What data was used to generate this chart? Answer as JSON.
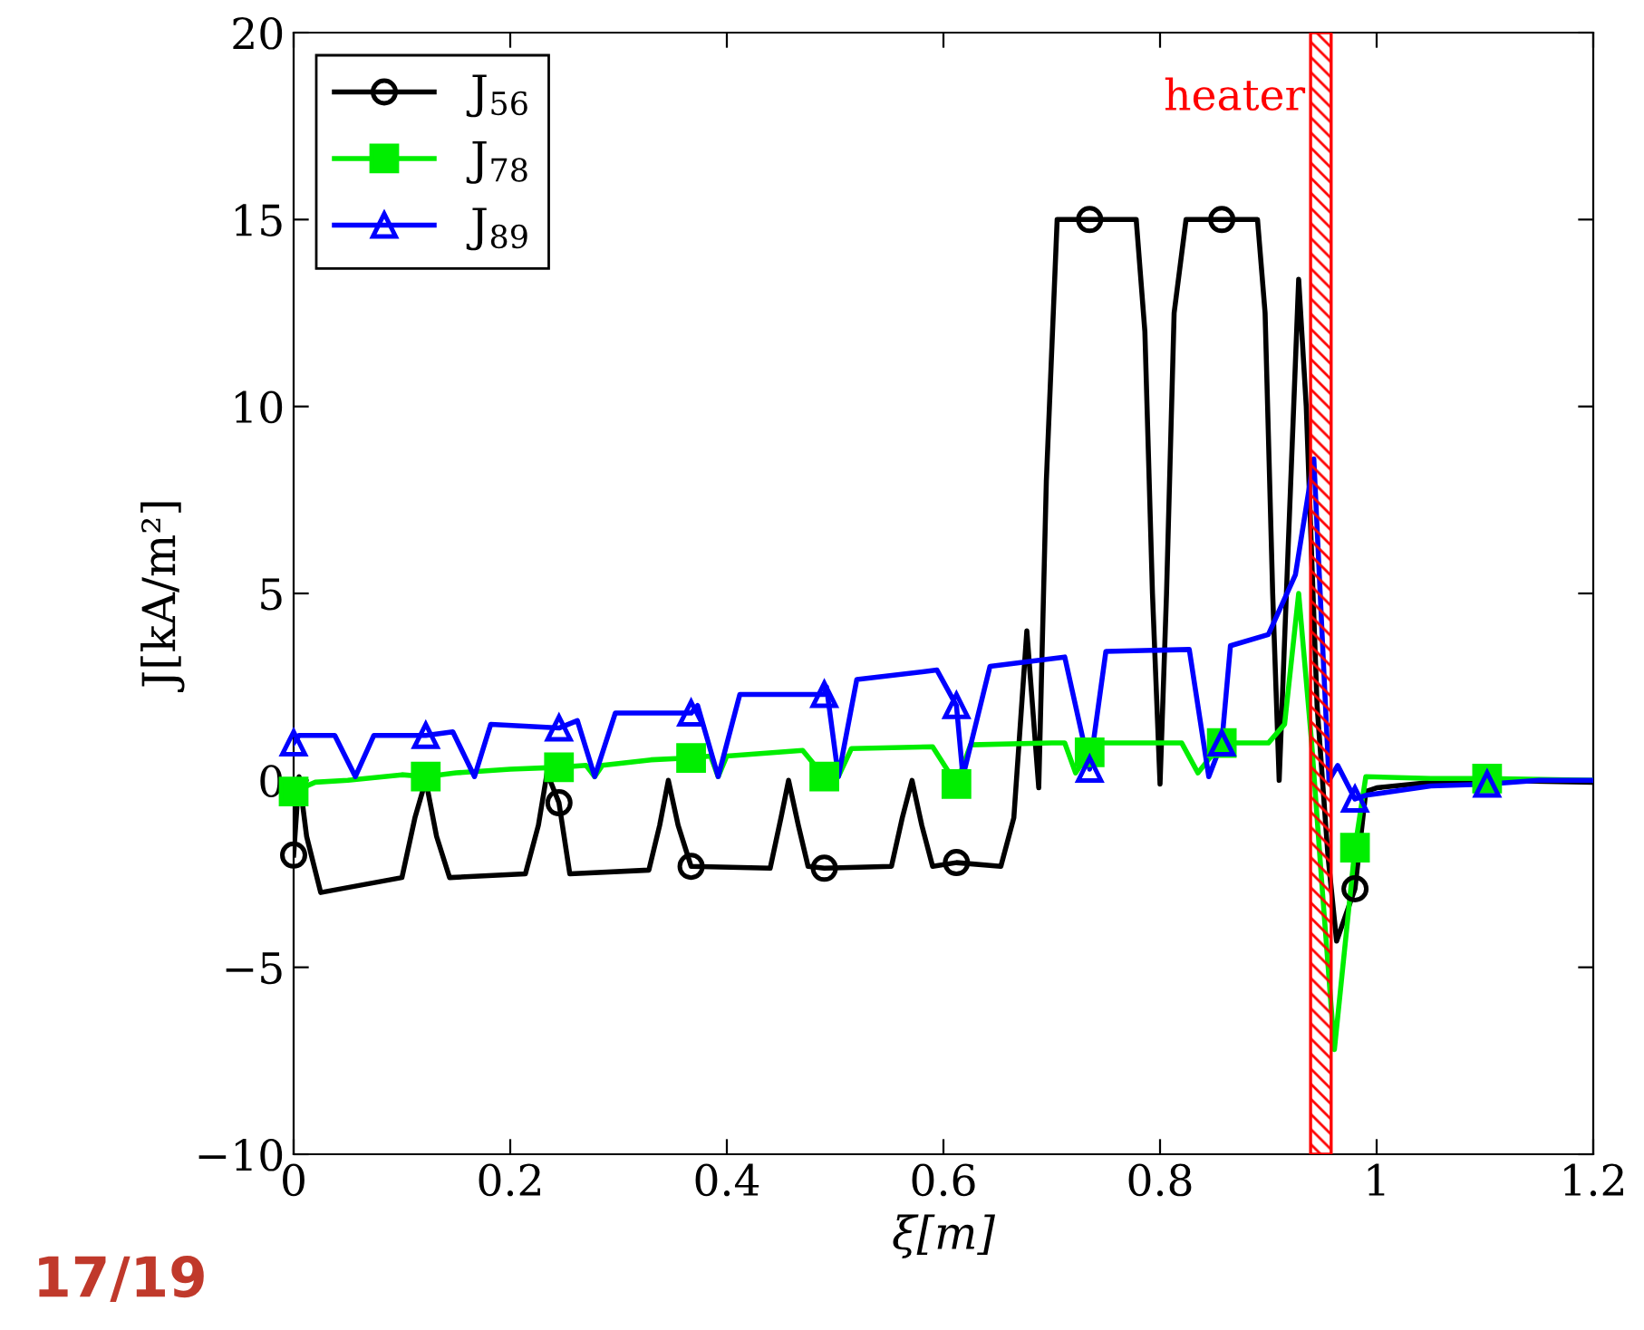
{
  "chart_data": {
    "type": "line",
    "xlabel": "ξ[m]",
    "ylabel": "J[kA/m²]",
    "xlim": [
      0,
      1.2
    ],
    "xticks": [
      0,
      0.2,
      0.4,
      0.6,
      0.8,
      1,
      1.2
    ],
    "ylim": [
      -10,
      20
    ],
    "yticks": [
      {
        "value": -10,
        "label": "−10"
      },
      {
        "value": -5,
        "label": "−5"
      },
      0,
      5,
      10,
      15,
      20
    ],
    "grid": false,
    "legend": "top left",
    "line_style": "solid",
    "series": [
      {
        "name": "J$_{56}$",
        "color": "#000000",
        "x": [
          0,
          0.005,
          0.012,
          0.025,
          0.1,
          0.112,
          0.122,
          0.132,
          0.144,
          0.214,
          0.226,
          0.234,
          0.245,
          0.255,
          0.328,
          0.338,
          0.346,
          0.355,
          0.367,
          0.44,
          0.45,
          0.457,
          0.466,
          0.475,
          0.49,
          0.552,
          0.562,
          0.571,
          0.58,
          0.59,
          0.612,
          0.653,
          0.665,
          0.677,
          0.688,
          0.695,
          0.705,
          0.735,
          0.778,
          0.786,
          0.793,
          0.8,
          0.806,
          0.813,
          0.824,
          0.857,
          0.89,
          0.897,
          0.904,
          0.91,
          0.918,
          0.928,
          0.935,
          0.945,
          0.955,
          0.963,
          0.98,
          0.99,
          1.0,
          1.05,
          1.1,
          1.2
        ],
        "values": [
          -2.0,
          0.1,
          -1.5,
          -3.0,
          -2.6,
          -1.0,
          0.0,
          -1.5,
          -2.6,
          -2.5,
          -1.2,
          0.2,
          -0.6,
          -2.5,
          -2.4,
          -1.2,
          0.0,
          -1.2,
          -2.3,
          -2.35,
          -1.0,
          0.0,
          -1.2,
          -2.3,
          -2.35,
          -2.3,
          -1.0,
          0.0,
          -1.2,
          -2.3,
          -2.2,
          -2.3,
          -1.0,
          4.0,
          -0.2,
          8.0,
          15.0,
          15.0,
          15.0,
          12.0,
          5.0,
          -0.1,
          5.0,
          12.5,
          15.0,
          15.0,
          15.0,
          12.5,
          5.0,
          0.0,
          6.0,
          13.4,
          10.0,
          2.0,
          -2.0,
          -4.3,
          -2.9,
          -0.3,
          -0.2,
          -0.05,
          0.0,
          -0.05
        ]
      },
      {
        "name": "J$_{78}$",
        "color": "#00ee00",
        "x": [
          0,
          0.02,
          0.05,
          0.1,
          0.122,
          0.15,
          0.2,
          0.245,
          0.27,
          0.278,
          0.285,
          0.33,
          0.367,
          0.385,
          0.392,
          0.4,
          0.47,
          0.49,
          0.503,
          0.515,
          0.59,
          0.612,
          0.625,
          0.7,
          0.712,
          0.722,
          0.735,
          0.745,
          0.82,
          0.835,
          0.857,
          0.9,
          0.915,
          0.928,
          0.94,
          0.95,
          0.961,
          0.98,
          0.99,
          1.05,
          1.102,
          1.2
        ],
        "values": [
          -0.3,
          -0.05,
          0.0,
          0.15,
          0.1,
          0.2,
          0.3,
          0.35,
          0.4,
          0.1,
          0.4,
          0.55,
          0.6,
          0.65,
          0.1,
          0.65,
          0.8,
          0.1,
          0.1,
          0.85,
          0.9,
          -0.1,
          0.95,
          1.0,
          1.0,
          0.2,
          0.75,
          1.0,
          1.0,
          0.2,
          1.0,
          1.0,
          1.5,
          5.0,
          1.0,
          -3.0,
          -7.2,
          -1.8,
          0.1,
          0.05,
          0.05,
          0.0
        ]
      },
      {
        "name": "J$_{89}$",
        "color": "#0000ff",
        "x": [
          0,
          0.005,
          0.038,
          0.057,
          0.074,
          0.122,
          0.147,
          0.167,
          0.182,
          0.245,
          0.262,
          0.278,
          0.297,
          0.367,
          0.373,
          0.392,
          0.412,
          0.49,
          0.492,
          0.503,
          0.52,
          0.594,
          0.612,
          0.618,
          0.643,
          0.712,
          0.735,
          0.75,
          0.827,
          0.845,
          0.857,
          0.865,
          0.9,
          0.925,
          0.942,
          0.956,
          0.964,
          0.98,
          0.99,
          1.05,
          1.102,
          1.15,
          1.2
        ],
        "values": [
          1.0,
          1.2,
          1.2,
          0.1,
          1.2,
          1.2,
          1.3,
          0.1,
          1.5,
          1.4,
          1.6,
          0.1,
          1.8,
          1.8,
          2.0,
          0.1,
          2.3,
          2.3,
          2.5,
          0.1,
          2.7,
          2.95,
          2.0,
          0.1,
          3.05,
          3.3,
          0.3,
          3.45,
          3.5,
          0.1,
          1.0,
          3.6,
          3.9,
          5.5,
          8.6,
          0.0,
          0.4,
          -0.5,
          -0.4,
          -0.15,
          -0.1,
          0.0,
          0.0
        ]
      },
      {
        "type": "scatter",
        "color": "#000000",
        "marker": "circle",
        "x": [
          0,
          0.245,
          0.367,
          0.49,
          0.612,
          0.735,
          0.857,
          0.98
        ],
        "values": [
          -2.0,
          -0.6,
          -2.3,
          -2.35,
          -2.2,
          15.0,
          15.0,
          -2.9
        ]
      },
      {
        "type": "scatter",
        "color": "#00ee00",
        "marker": "square",
        "x": [
          0,
          0.122,
          0.245,
          0.367,
          0.49,
          0.612,
          0.735,
          0.857,
          0.98,
          1.102
        ],
        "values": [
          -0.3,
          0.1,
          0.35,
          0.6,
          0.1,
          -0.1,
          0.75,
          1.0,
          -1.8,
          0.05
        ]
      },
      {
        "type": "scatter",
        "color": "#0000ff",
        "marker": "triangle",
        "x": [
          0,
          0.122,
          0.245,
          0.367,
          0.49,
          0.612,
          0.735,
          0.857,
          0.98,
          1.102
        ],
        "values": [
          1.0,
          1.2,
          1.4,
          1.8,
          2.3,
          2.0,
          0.3,
          1.0,
          -0.5,
          -0.1
        ]
      }
    ],
    "bands": [
      {
        "axis": "x",
        "from": 0.939,
        "to": 0.958,
        "label": "heater",
        "color": "#ff0000"
      }
    ],
    "annotations": [
      "17/19"
    ]
  }
}
